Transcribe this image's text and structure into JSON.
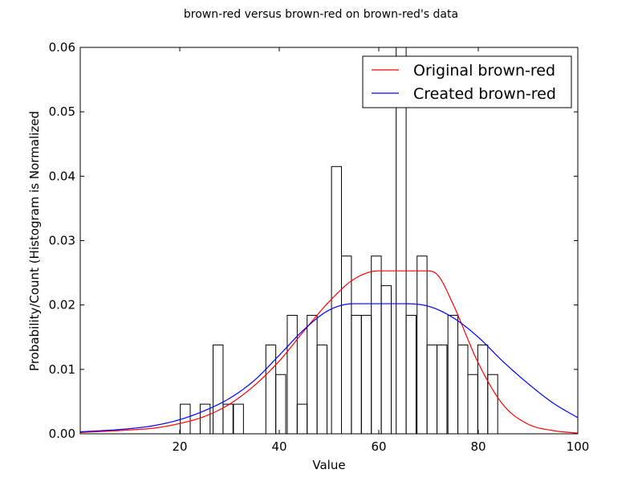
{
  "chart_data": {
    "type": "histogram+line",
    "title": "brown-red versus brown-red on brown-red's data",
    "xlabel": "Value",
    "ylabel": "Probability/Count (Histogram is Normalized",
    "xlim": [
      0,
      100
    ],
    "ylim": [
      0,
      0.06
    ],
    "xticks": [
      20,
      40,
      60,
      80,
      100
    ],
    "yticks": [
      0.0,
      0.01,
      0.02,
      0.03,
      0.04,
      0.05,
      0.06
    ],
    "ytick_labels": [
      "0.00",
      "0.01",
      "0.02",
      "0.03",
      "0.04",
      "0.05",
      "0.06"
    ],
    "grid": false,
    "legend_position": "top-right",
    "histogram": {
      "bin_width": 2,
      "edgecolor": "#000000",
      "fill": "none",
      "bins": [
        {
          "x0": 20.1,
          "h": 0.0046
        },
        {
          "x0": 24.1,
          "h": 0.0046
        },
        {
          "x0": 26.7,
          "h": 0.0138
        },
        {
          "x0": 28.7,
          "h": 0.0046
        },
        {
          "x0": 30.8,
          "h": 0.0046
        },
        {
          "x0": 37.3,
          "h": 0.0138
        },
        {
          "x0": 39.3,
          "h": 0.0092
        },
        {
          "x0": 41.6,
          "h": 0.0184
        },
        {
          "x0": 43.6,
          "h": 0.0046
        },
        {
          "x0": 45.6,
          "h": 0.0184
        },
        {
          "x0": 47.6,
          "h": 0.0138
        },
        {
          "x0": 50.5,
          "h": 0.0415
        },
        {
          "x0": 52.5,
          "h": 0.0276
        },
        {
          "x0": 54.5,
          "h": 0.0184
        },
        {
          "x0": 56.5,
          "h": 0.0184
        },
        {
          "x0": 58.5,
          "h": 0.0276
        },
        {
          "x0": 60.5,
          "h": 0.023
        },
        {
          "x0": 63.5,
          "h": 0.06
        },
        {
          "x0": 65.5,
          "h": 0.0184
        },
        {
          "x0": 67.7,
          "h": 0.0276
        },
        {
          "x0": 69.7,
          "h": 0.0138
        },
        {
          "x0": 71.7,
          "h": 0.0138
        },
        {
          "x0": 73.9,
          "h": 0.0184
        },
        {
          "x0": 75.9,
          "h": 0.0138
        },
        {
          "x0": 77.9,
          "h": 0.0092
        },
        {
          "x0": 79.9,
          "h": 0.0138
        },
        {
          "x0": 81.9,
          "h": 0.0092
        }
      ]
    },
    "series": [
      {
        "name": "Original brown-red",
        "color": "#ff0000",
        "x": [
          0,
          10,
          15,
          20,
          25,
          30,
          35,
          40,
          45,
          50,
          55,
          60,
          65,
          70,
          72,
          75,
          80,
          85,
          90,
          95,
          100
        ],
        "y": [
          0.0002,
          0.0006,
          0.0009,
          0.0016,
          0.0027,
          0.0046,
          0.0075,
          0.0113,
          0.016,
          0.0205,
          0.024,
          0.0253,
          0.0253,
          0.0253,
          0.0245,
          0.02,
          0.011,
          0.0045,
          0.0015,
          0.0005,
          0.0001
        ]
      },
      {
        "name": "Created brown-red",
        "color": "#0000ff",
        "x": [
          0,
          10,
          15,
          20,
          25,
          30,
          35,
          40,
          45,
          50,
          55,
          60,
          65,
          70,
          75,
          80,
          85,
          90,
          95,
          100
        ],
        "y": [
          0.0003,
          0.0008,
          0.0013,
          0.0022,
          0.0036,
          0.0055,
          0.0083,
          0.0122,
          0.0162,
          0.0192,
          0.0202,
          0.0202,
          0.0202,
          0.0198,
          0.018,
          0.015,
          0.0112,
          0.0078,
          0.0048,
          0.0025
        ]
      }
    ]
  }
}
